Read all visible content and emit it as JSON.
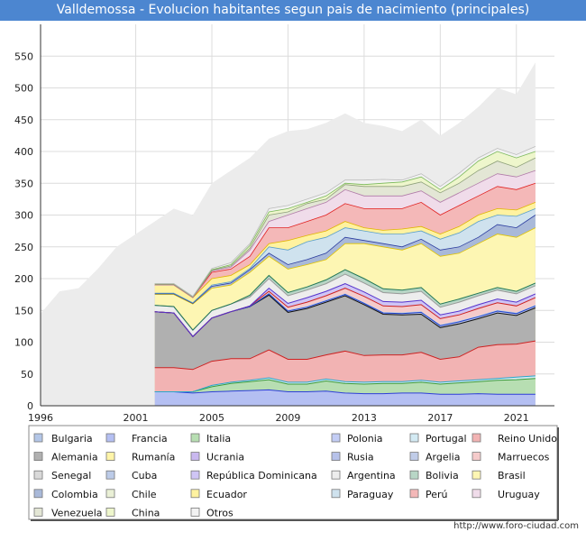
{
  "chart_data": {
    "type": "area",
    "title": "Valldemossa - Evolucion habitantes segun pais de nacimiento (principales)",
    "xlabel": "",
    "ylabel": "",
    "xlim": [
      1996,
      2023
    ],
    "ylim": [
      0,
      600
    ],
    "x_ticks": [
      1996,
      2001,
      2005,
      2009,
      2013,
      2017,
      2021
    ],
    "y_ticks": [
      0,
      50,
      100,
      150,
      200,
      250,
      300,
      350,
      400,
      450,
      500,
      550
    ],
    "x": [
      2002,
      2003,
      2004,
      2005,
      2006,
      2007,
      2008,
      2009,
      2010,
      2011,
      2012,
      2013,
      2014,
      2015,
      2016,
      2017,
      2018,
      2019,
      2020,
      2021,
      2022
    ],
    "series": [
      {
        "name": "Bulgaria",
        "color": "#b3c6e7",
        "values": [
          0,
          0,
          0,
          0,
          0,
          0,
          0,
          0,
          0,
          0,
          0,
          0,
          0,
          0,
          0,
          0,
          0,
          0,
          0,
          0,
          0
        ]
      },
      {
        "name": "Francia",
        "color": "#b4bff2",
        "values": [
          22,
          22,
          20,
          22,
          23,
          24,
          25,
          22,
          22,
          23,
          20,
          19,
          19,
          20,
          20,
          18,
          18,
          19,
          18,
          18,
          18
        ]
      },
      {
        "name": "Italia",
        "color": "#b7deb2",
        "values": [
          0,
          0,
          2,
          8,
          12,
          14,
          16,
          12,
          12,
          16,
          15,
          15,
          16,
          15,
          17,
          16,
          18,
          19,
          22,
          23,
          25
        ]
      },
      {
        "name": "Polonia",
        "color": "#c3cdf5",
        "values": [
          0,
          0,
          0,
          0,
          0,
          0,
          0,
          0,
          0,
          0,
          0,
          0,
          0,
          0,
          0,
          0,
          0,
          0,
          0,
          0,
          0
        ]
      },
      {
        "name": "Portugal",
        "color": "#d3eaf3",
        "values": [
          0,
          0,
          0,
          2,
          2,
          2,
          3,
          3,
          3,
          3,
          3,
          3,
          3,
          3,
          3,
          3,
          3,
          3,
          3,
          4,
          4
        ]
      },
      {
        "name": "Reino Unido",
        "color": "#f2b3b3",
        "values": [
          38,
          38,
          35,
          38,
          37,
          34,
          44,
          36,
          36,
          38,
          48,
          42,
          42,
          42,
          44,
          36,
          38,
          51,
          53,
          52,
          55
        ]
      },
      {
        "name": "Alemania",
        "color": "#b0b0b0",
        "values": [
          88,
          86,
          52,
          68,
          74,
          82,
          86,
          74,
          80,
          83,
          87,
          80,
          64,
          63,
          60,
          50,
          52,
          45,
          50,
          45,
          52
        ]
      },
      {
        "name": "Rumanía",
        "color": "#fff4a8",
        "values": [
          0,
          0,
          0,
          0,
          0,
          0,
          0,
          0,
          0,
          0,
          0,
          0,
          0,
          0,
          0,
          0,
          0,
          0,
          0,
          0,
          0
        ]
      },
      {
        "name": "Ucrania",
        "color": "#c9b8ef",
        "values": [
          0,
          0,
          0,
          0,
          0,
          0,
          0,
          0,
          0,
          0,
          0,
          0,
          0,
          0,
          0,
          0,
          0,
          0,
          0,
          0,
          0
        ]
      },
      {
        "name": "Rusia",
        "color": "#b7c2ea",
        "values": [
          0,
          0,
          0,
          0,
          0,
          0,
          2,
          2,
          2,
          2,
          2,
          2,
          2,
          2,
          3,
          3,
          3,
          3,
          3,
          3,
          3
        ]
      },
      {
        "name": "Argelia",
        "color": "#c0cce8",
        "values": [
          0,
          0,
          0,
          0,
          0,
          0,
          2,
          2,
          2,
          2,
          2,
          2,
          2,
          2,
          2,
          2,
          2,
          2,
          2,
          2,
          2
        ]
      },
      {
        "name": "Marruecos",
        "color": "#f5cbcb",
        "values": [
          0,
          0,
          0,
          0,
          0,
          1,
          2,
          4,
          6,
          6,
          8,
          9,
          9,
          9,
          10,
          9,
          9,
          11,
          11,
          10,
          11
        ]
      },
      {
        "name": "Senegal",
        "color": "#d9d9d9",
        "values": [
          0,
          0,
          0,
          0,
          0,
          0,
          0,
          0,
          0,
          0,
          0,
          0,
          0,
          0,
          0,
          0,
          0,
          0,
          0,
          0,
          0
        ]
      },
      {
        "name": "Cuba",
        "color": "#bccbe8",
        "values": [
          0,
          0,
          0,
          0,
          0,
          0,
          0,
          0,
          0,
          0,
          0,
          0,
          0,
          0,
          0,
          0,
          0,
          0,
          0,
          0,
          0
        ]
      },
      {
        "name": "República Dominicana",
        "color": "#cfc5f5",
        "values": [
          0,
          0,
          0,
          0,
          0,
          0,
          5,
          6,
          7,
          7,
          7,
          7,
          7,
          7,
          7,
          6,
          6,
          6,
          6,
          6,
          6
        ]
      },
      {
        "name": "Argentina",
        "color": "#ededed",
        "values": [
          10,
          10,
          10,
          12,
          12,
          14,
          15,
          12,
          12,
          12,
          15,
          14,
          14,
          13,
          14,
          12,
          14,
          14,
          14,
          13,
          13
        ]
      },
      {
        "name": "Bolivia",
        "color": "#b8d6c6",
        "values": [
          0,
          0,
          0,
          0,
          0,
          3,
          5,
          5,
          5,
          6,
          7,
          7,
          6,
          6,
          6,
          5,
          5,
          4,
          4,
          4,
          4
        ]
      },
      {
        "name": "Brasil",
        "color": "#fdf6b3",
        "values": [
          0,
          0,
          0,
          0,
          0,
          0,
          0,
          0,
          0,
          0,
          0,
          0,
          0,
          0,
          0,
          0,
          0,
          0,
          0,
          0,
          0
        ]
      },
      {
        "name": "Colombia",
        "color": "#a9b9d9",
        "values": [
          0,
          0,
          0,
          0,
          0,
          0,
          0,
          0,
          0,
          0,
          0,
          0,
          0,
          0,
          0,
          0,
          0,
          0,
          0,
          0,
          0
        ]
      },
      {
        "name": "Chile",
        "color": "#eaf0d6",
        "values": [
          0,
          0,
          0,
          0,
          0,
          0,
          0,
          0,
          0,
          0,
          0,
          0,
          0,
          0,
          0,
          0,
          0,
          0,
          0,
          0,
          0
        ]
      },
      {
        "name": "Ecuador",
        "color": "#fff2a0",
        "values": [
          0,
          0,
          0,
          0,
          0,
          0,
          0,
          0,
          0,
          0,
          0,
          0,
          0,
          0,
          0,
          0,
          0,
          0,
          0,
          0,
          0
        ]
      },
      {
        "name": "Paraguay",
        "color": "#cfe2ee",
        "values": [
          0,
          0,
          0,
          0,
          0,
          0,
          0,
          0,
          0,
          0,
          0,
          0,
          0,
          0,
          0,
          0,
          0,
          0,
          0,
          0,
          0
        ]
      },
      {
        "name": "Perú",
        "color": "#f4b8b8",
        "values": [
          0,
          0,
          0,
          0,
          0,
          0,
          0,
          0,
          0,
          0,
          0,
          0,
          0,
          0,
          0,
          0,
          0,
          0,
          0,
          0,
          0
        ]
      },
      {
        "name": "Uruguay",
        "color": "#f0dcea",
        "values": [
          0,
          0,
          0,
          0,
          0,
          0,
          0,
          0,
          0,
          0,
          0,
          0,
          0,
          0,
          0,
          0,
          0,
          0,
          0,
          0,
          0
        ]
      },
      {
        "name": "Venezuela",
        "color": "#e3e6d5",
        "values": [
          0,
          0,
          0,
          0,
          0,
          0,
          0,
          0,
          0,
          0,
          0,
          0,
          0,
          0,
          0,
          0,
          0,
          0,
          0,
          0,
          0
        ]
      },
      {
        "name": "China",
        "color": "#eef6cc",
        "values": [
          0,
          0,
          0,
          0,
          0,
          0,
          0,
          0,
          0,
          0,
          0,
          0,
          0,
          0,
          0,
          0,
          0,
          0,
          0,
          0,
          0
        ]
      },
      {
        "name": "Otros",
        "color": "#f2f2f2",
        "values": [
          0,
          0,
          0,
          0,
          0,
          0,
          0,
          0,
          0,
          0,
          0,
          0,
          0,
          0,
          0,
          0,
          0,
          0,
          0,
          0,
          0
        ]
      }
    ],
    "layered_bands": {
      "x": [
        2002,
        2003,
        2004,
        2005,
        2006,
        2007,
        2008,
        2009,
        2010,
        2011,
        2012,
        2013,
        2014,
        2015,
        2016,
        2017,
        2018,
        2019,
        2020,
        2021,
        2022
      ],
      "tops": [
        {
          "name": "Brasil",
          "color": "#fdf6b3",
          "values": [
            175,
            175,
            160,
            185,
            190,
            210,
            235,
            215,
            222,
            230,
            255,
            255,
            250,
            245,
            255,
            235,
            240,
            255,
            270,
            265,
            280
          ]
        },
        {
          "name": "Colombia",
          "color": "#a9b9d9",
          "values": [
            176,
            176,
            161,
            188,
            193,
            214,
            240,
            222,
            230,
            240,
            265,
            260,
            255,
            250,
            262,
            245,
            250,
            265,
            285,
            280,
            300
          ]
        },
        {
          "name": "Paraguay",
          "color": "#cfe2ee",
          "values": [
            177,
            177,
            162,
            190,
            195,
            216,
            250,
            245,
            258,
            265,
            280,
            275,
            270,
            270,
            275,
            262,
            272,
            290,
            300,
            298,
            310
          ]
        },
        {
          "name": "Ecuador",
          "color": "#fff2a0",
          "values": [
            190,
            190,
            170,
            200,
            205,
            222,
            255,
            260,
            268,
            275,
            290,
            280,
            276,
            278,
            282,
            270,
            282,
            300,
            310,
            308,
            320
          ]
        },
        {
          "name": "Perú",
          "color": "#f4b8b8",
          "values": [
            190,
            190,
            170,
            210,
            215,
            235,
            280,
            280,
            290,
            300,
            318,
            310,
            310,
            310,
            320,
            300,
            315,
            330,
            345,
            340,
            350
          ]
        },
        {
          "name": "Uruguay",
          "color": "#f0dcea",
          "values": [
            190,
            190,
            170,
            212,
            218,
            245,
            290,
            300,
            310,
            320,
            340,
            330,
            330,
            330,
            338,
            320,
            335,
            350,
            365,
            360,
            370
          ]
        },
        {
          "name": "Venezuela",
          "color": "#e3e6d5",
          "values": [
            191,
            191,
            171,
            213,
            220,
            248,
            300,
            305,
            318,
            325,
            348,
            345,
            345,
            345,
            352,
            335,
            350,
            370,
            385,
            375,
            390
          ]
        },
        {
          "name": "China",
          "color": "#eef6cc",
          "values": [
            192,
            192,
            172,
            214,
            222,
            252,
            305,
            310,
            320,
            330,
            350,
            348,
            350,
            352,
            360,
            340,
            360,
            385,
            400,
            390,
            400
          ]
        },
        {
          "name": "Otros",
          "color": "#f2f2f2",
          "values": [
            192,
            192,
            172,
            216,
            225,
            255,
            310,
            315,
            325,
            335,
            355,
            355,
            356,
            355,
            365,
            345,
            366,
            390,
            405,
            395,
            408
          ]
        }
      ],
      "total": {
        "name": "Total",
        "color": "#ececec",
        "x": [
          1996,
          1997,
          1998,
          1999,
          2000,
          2001,
          2002,
          2003,
          2004,
          2005,
          2006,
          2007,
          2008,
          2009,
          2010,
          2011,
          2012,
          2013,
          2014,
          2015,
          2016,
          2017,
          2018,
          2019,
          2020,
          2021,
          2022
        ],
        "values": [
          145,
          180,
          185,
          215,
          250,
          270,
          290,
          310,
          300,
          350,
          370,
          390,
          420,
          432,
          435,
          445,
          460,
          445,
          440,
          432,
          450,
          425,
          445,
          470,
          500,
          490,
          540
        ]
      }
    }
  },
  "footer_text": "http://www.foro-ciudad.com"
}
